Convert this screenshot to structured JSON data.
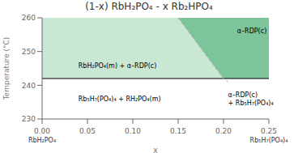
{
  "chart_data": {
    "type": "phase_diagram",
    "title": "(1-x) RbH₂PO₄ - x Rb₂HPO₄",
    "x_label": "x",
    "y_label": "Temperature (°C)",
    "xlim": [
      0.0,
      0.25
    ],
    "ylim": [
      230,
      260
    ],
    "xticks": [
      {
        "value": 0.0,
        "label": "0.00"
      },
      {
        "value": 0.05,
        "label": "0.05"
      },
      {
        "value": 0.1,
        "label": "0.10"
      },
      {
        "value": 0.15,
        "label": "0.15"
      },
      {
        "value": 0.2,
        "label": "0.20"
      },
      {
        "value": 0.25,
        "label": "0.25"
      }
    ],
    "yticks": [
      230,
      240,
      250,
      260
    ],
    "x_end_labels": [
      "RbH₂PO₄",
      "Rb₅H₇(PO₄)₄"
    ],
    "transition_y": 242,
    "transition_color": "#000000",
    "boundary": {
      "x": [
        0.15,
        0.2,
        0.205
      ],
      "y": [
        260,
        242,
        241
      ],
      "color": "#aaaaaa",
      "line_style": "dashed"
    },
    "regions": [
      {
        "label": "RbH₂PO₄(m) + α–RDP(c)",
        "color": "#c8e8d4"
      },
      {
        "label": "Rb₅H₇(PO₄)₄ + RH₂PO₄(m)",
        "color": "#ffffff"
      },
      {
        "label": "α–RDP(c)",
        "color": "#7cc49a"
      },
      {
        "label": "α–RDP(c)\n+ Rb₅H₇(PO₄)₄",
        "color": "#ffffff"
      }
    ]
  }
}
